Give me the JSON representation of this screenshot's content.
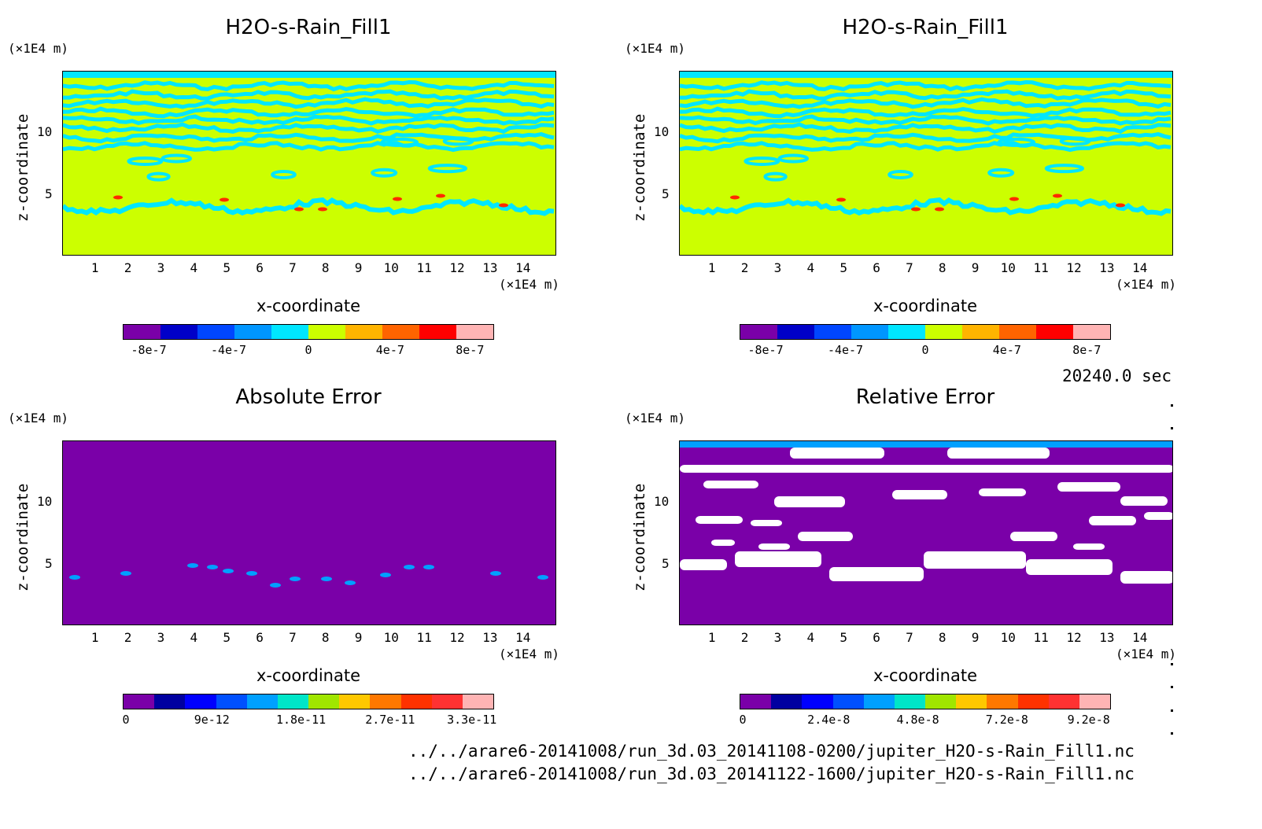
{
  "panels": [
    {
      "id": "top-left",
      "title": "H2O-s-Rain_Fill1",
      "y_unit": "(×1E4 m)",
      "x_unit": "(×1E4 m)",
      "xlabel": "x-coordinate",
      "ylabel": "z-coordinate",
      "x_ticks": [
        "1",
        "2",
        "3",
        "4",
        "5",
        "6",
        "7",
        "8",
        "9",
        "10",
        "11",
        "12",
        "13",
        "14"
      ],
      "y_ticks": [
        "5",
        "10"
      ],
      "colorbar": {
        "colors": [
          "#7a00a8",
          "#0000c8",
          "#0046ff",
          "#0096ff",
          "#00e6ff",
          "#ccff00",
          "#ffb400",
          "#ff6400",
          "#ff0000",
          "#ffb4b4"
        ],
        "labels": [
          "-8e-7",
          "-4e-7",
          "0",
          "4e-7",
          "8e-7"
        ]
      },
      "chart_data": {
        "type": "heatmap",
        "field": "H2O-s-Rain_Fill1",
        "xlim": [
          0,
          15
        ],
        "ylim": [
          0,
          15
        ],
        "background_color": "#ccff00",
        "feature_color": "#00e6ff",
        "value_range": [
          -1e-06,
          1e-06
        ]
      }
    },
    {
      "id": "top-right",
      "title": "H2O-s-Rain_Fill1",
      "y_unit": "(×1E4 m)",
      "x_unit": "(×1E4 m)",
      "xlabel": "x-coordinate",
      "ylabel": "z-coordinate",
      "x_ticks": [
        "1",
        "2",
        "3",
        "4",
        "5",
        "6",
        "7",
        "8",
        "9",
        "10",
        "11",
        "12",
        "13",
        "14"
      ],
      "y_ticks": [
        "5",
        "10"
      ],
      "colorbar": {
        "colors": [
          "#7a00a8",
          "#0000c8",
          "#0046ff",
          "#0096ff",
          "#00e6ff",
          "#ccff00",
          "#ffb400",
          "#ff6400",
          "#ff0000",
          "#ffb4b4"
        ],
        "labels": [
          "-8e-7",
          "-4e-7",
          "0",
          "4e-7",
          "8e-7"
        ]
      },
      "chart_data": {
        "type": "heatmap",
        "field": "H2O-s-Rain_Fill1",
        "xlim": [
          0,
          15
        ],
        "ylim": [
          0,
          15
        ],
        "background_color": "#ccff00",
        "feature_color": "#00e6ff",
        "value_range": [
          -1e-06,
          1e-06
        ]
      }
    },
    {
      "id": "bottom-left",
      "title": "Absolute Error",
      "y_unit": "(×1E4 m)",
      "x_unit": "(×1E4 m)",
      "xlabel": "x-coordinate",
      "ylabel": "z-coordinate",
      "x_ticks": [
        "1",
        "2",
        "3",
        "4",
        "5",
        "6",
        "7",
        "8",
        "9",
        "10",
        "11",
        "12",
        "13",
        "14"
      ],
      "y_ticks": [
        "5",
        "10"
      ],
      "colorbar": {
        "colors": [
          "#7a00a8",
          "#0000a0",
          "#0000ff",
          "#0050ff",
          "#00a0ff",
          "#00e6c8",
          "#a0e600",
          "#ffc800",
          "#ff7800",
          "#ff3200",
          "#ff3232",
          "#ffb4b4"
        ],
        "labels": [
          "0",
          "9e-12",
          "1.8e-11",
          "2.7e-11",
          "3.3e-11"
        ]
      },
      "chart_data": {
        "type": "heatmap",
        "field": "Absolute Error",
        "xlim": [
          0,
          15
        ],
        "ylim": [
          0,
          15
        ],
        "background_color": "#7a00a8",
        "value_range": [
          0,
          3.3e-11
        ]
      }
    },
    {
      "id": "bottom-right",
      "title": "Relative Error",
      "y_unit": "(×1E4 m)",
      "x_unit": "(×1E4 m)",
      "xlabel": "x-coordinate",
      "ylabel": "z-coordinate",
      "x_ticks": [
        "1",
        "2",
        "3",
        "4",
        "5",
        "6",
        "7",
        "8",
        "9",
        "10",
        "11",
        "12",
        "13",
        "14"
      ],
      "y_ticks": [
        "5",
        "10"
      ],
      "colorbar": {
        "colors": [
          "#7a00a8",
          "#0000a0",
          "#0000ff",
          "#0050ff",
          "#00a0ff",
          "#00e6c8",
          "#a0e600",
          "#ffc800",
          "#ff7800",
          "#ff3200",
          "#ff3232",
          "#ffb4b4"
        ],
        "labels": [
          "0",
          "2.4e-8",
          "4.8e-8",
          "7.2e-8",
          "9.2e-8"
        ]
      },
      "chart_data": {
        "type": "heatmap",
        "field": "Relative Error",
        "xlim": [
          0,
          15
        ],
        "ylim": [
          0,
          15
        ],
        "background_color": "#7a00a8",
        "missing_color": "#ffffff",
        "value_range": [
          0,
          9.2e-08
        ]
      }
    }
  ],
  "time_label": "20240.0 sec",
  "footer": {
    "line1": "../../arare6-20141008/run_3d.03_20141108-0200/jupiter_H2O-s-Rain_Fill1.nc",
    "line2": "../../arare6-20141008/run_3d.03_20141122-1600/jupiter_H2O-s-Rain_Fill1.nc"
  }
}
